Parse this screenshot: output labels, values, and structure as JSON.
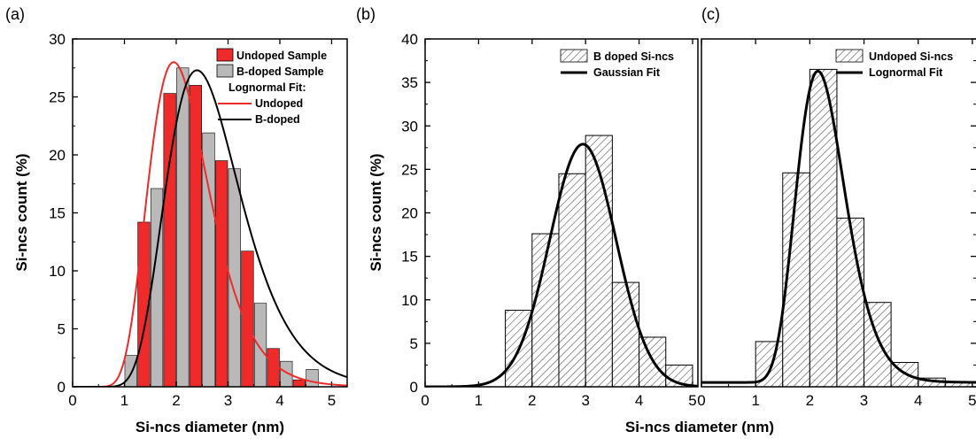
{
  "chart_data": [
    {
      "panel": "(a)",
      "type": "bar",
      "xlabel": "Si-ncs diameter (nm)",
      "ylabel": "Si-ncs count (%)",
      "xlim": [
        0,
        5.3
      ],
      "ylim": [
        0,
        30
      ],
      "xticks": [
        0,
        1,
        2,
        3,
        4,
        5
      ],
      "yticks": [
        0,
        5,
        10,
        15,
        20,
        25,
        30
      ],
      "bin_width": 0.25,
      "series": [
        {
          "name": "Undoped Sample",
          "color": "#ee2a2a",
          "x": [
            1.375,
            1.875,
            2.375,
            2.875,
            3.375,
            3.875,
            4.375
          ],
          "values": [
            14.2,
            25.3,
            26.0,
            19.5,
            11.7,
            3.3,
            0.6
          ]
        },
        {
          "name": "B-doped Sample",
          "color": "#b9b9b9",
          "x": [
            1.125,
            1.625,
            2.125,
            2.625,
            3.125,
            3.625,
            4.125,
            4.625
          ],
          "values": [
            2.7,
            17.1,
            27.5,
            21.9,
            18.8,
            7.2,
            2.2,
            1.5
          ]
        }
      ],
      "fit_title": "Lognormal Fit:",
      "fits": [
        {
          "name": "Undoped",
          "kind": "lognormal",
          "color": "#ee2a2a",
          "amplitude": 28.0,
          "mode": 1.95,
          "sigma": 0.3
        },
        {
          "name": "B-doped",
          "kind": "lognormal",
          "color": "#000000",
          "amplitude": 27.3,
          "mode": 2.4,
          "sigma": 0.3
        }
      ]
    },
    {
      "panel": "(b)",
      "type": "bar",
      "xlabel": "",
      "ylabel": "Si-ncs count (%)",
      "xlim": [
        0,
        5.1
      ],
      "ylim": [
        0,
        40
      ],
      "xticks": [
        0,
        1,
        2,
        3,
        4,
        5
      ],
      "yticks": [
        0,
        5,
        10,
        15,
        20,
        25,
        30,
        35,
        40
      ],
      "bin_width": 0.5,
      "series": [
        {
          "name": "B doped Si-ncs",
          "pattern": "hatch",
          "x": [
            1.75,
            2.25,
            2.75,
            3.25,
            3.75,
            4.25,
            4.75
          ],
          "values": [
            8.8,
            17.6,
            24.5,
            28.9,
            12.0,
            5.7,
            2.5
          ]
        }
      ],
      "fits": [
        {
          "name": "Gaussian Fit",
          "kind": "gaussian",
          "color": "#000000",
          "amplitude": 27.9,
          "center": 2.95,
          "sigma": 0.62
        }
      ]
    },
    {
      "panel": "(c)",
      "type": "bar",
      "xlabel": "",
      "ylabel": "",
      "xlim": [
        0,
        5.1
      ],
      "ylim": [
        0,
        40
      ],
      "xticks": [
        0,
        1,
        2,
        3,
        4,
        5
      ],
      "yticks": [
        0,
        5,
        10,
        15,
        20,
        25,
        30,
        35,
        40
      ],
      "bin_width": 0.5,
      "series": [
        {
          "name": "Undoped Si-ncs",
          "pattern": "hatch",
          "x": [
            1.25,
            1.75,
            2.25,
            2.75,
            3.25,
            3.75,
            4.25,
            4.75
          ],
          "values": [
            5.2,
            24.6,
            36.5,
            19.4,
            9.7,
            2.8,
            1.0,
            0.6
          ]
        }
      ],
      "fits": [
        {
          "name": "Lognormal Fit",
          "kind": "lognormal",
          "color": "#000000",
          "amplitude": 35.8,
          "mode": 2.15,
          "sigma": 0.21,
          "baseline": 0.5
        }
      ]
    }
  ],
  "shared_xlabel": "Si-ncs diameter (nm)"
}
